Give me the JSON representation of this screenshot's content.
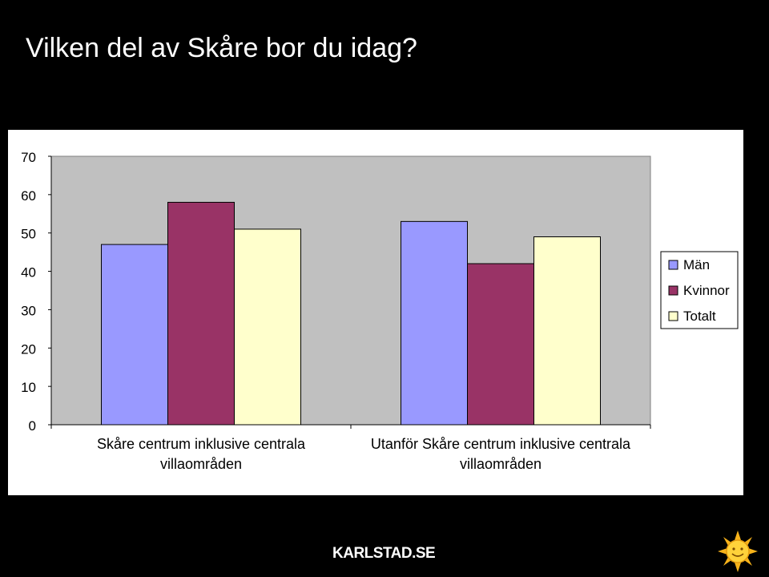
{
  "slide": {
    "title": "Vilken del av Skåre bor du idag?",
    "footer_logo": "KARLSTAD.SE"
  },
  "colors": {
    "background": "#000000",
    "panel": "#ffffff",
    "plot_area": "#c0c0c0",
    "axis": "#000000"
  },
  "icons": {
    "sun": "sun-icon"
  },
  "chart_data": {
    "type": "bar",
    "title": "",
    "xlabel": "",
    "ylabel": "",
    "categories": [
      "Skåre centrum inklusive centrala villaområden",
      "Utanför Skåre centrum inklusive centrala villaområden"
    ],
    "category_lines": [
      [
        "Skåre centrum inklusive centrala",
        "villaområden"
      ],
      [
        "Utanför Skåre centrum inklusive centrala",
        "villaområden"
      ]
    ],
    "series": [
      {
        "name": "Män",
        "color": "#9999ff",
        "values": [
          47,
          53
        ]
      },
      {
        "name": "Kvinnor",
        "color": "#993366",
        "values": [
          58,
          42
        ]
      },
      {
        "name": "Totalt",
        "color": "#ffffcc",
        "values": [
          51,
          49
        ]
      }
    ],
    "ylim": [
      0,
      70
    ],
    "yticks": [
      "0",
      "10",
      "20",
      "30",
      "40",
      "50",
      "60",
      "70"
    ],
    "grid": false,
    "legend": "right"
  }
}
